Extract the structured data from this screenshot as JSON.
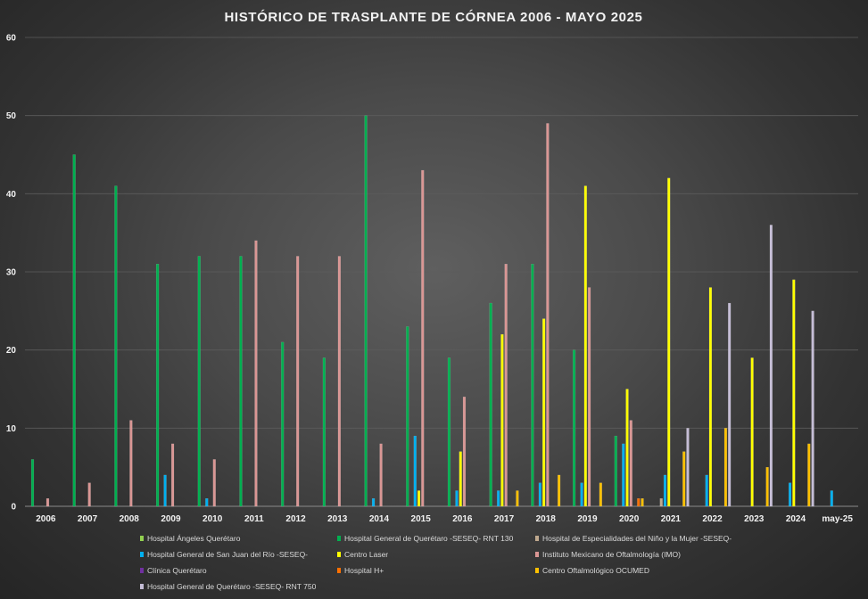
{
  "chart_data": {
    "type": "bar",
    "title": "HISTÓRICO DE TRASPLANTE DE CÓRNEA 2006 - MAYO 2025",
    "categories": [
      "2006",
      "2007",
      "2008",
      "2009",
      "2010",
      "2011",
      "2012",
      "2013",
      "2014",
      "2015",
      "2016",
      "2017",
      "2018",
      "2019",
      "2020",
      "2021",
      "2022",
      "2023",
      "2024",
      "may-25"
    ],
    "ylim": [
      0,
      60
    ],
    "yticks": [
      0,
      10,
      20,
      30,
      40,
      50,
      60
    ],
    "grid": true,
    "legend": "bottom",
    "series": [
      {
        "name": "Hospital Ángeles Querétaro",
        "color": "#92D050",
        "values": [
          null,
          null,
          null,
          null,
          null,
          null,
          null,
          null,
          null,
          null,
          null,
          null,
          null,
          null,
          null,
          null,
          null,
          null,
          null,
          null
        ]
      },
      {
        "name": "Hospital General de Querétaro -SESEQ- RNT 130",
        "color": "#00B050",
        "values": [
          6,
          45,
          41,
          31,
          32,
          32,
          21,
          19,
          50,
          23,
          19,
          26,
          31,
          20,
          9,
          null,
          null,
          null,
          null,
          null
        ]
      },
      {
        "name": "Hospital de Especialidades del Niño y la Mujer -SESEQ-",
        "color": "#BFA98F",
        "values": [
          null,
          null,
          null,
          null,
          null,
          null,
          null,
          null,
          null,
          null,
          null,
          null,
          null,
          null,
          null,
          1,
          null,
          null,
          null,
          null
        ]
      },
      {
        "name": "Hospital General de San Juan del Río -SESEQ-",
        "color": "#00B0F0",
        "values": [
          null,
          null,
          null,
          4,
          1,
          null,
          null,
          null,
          1,
          9,
          2,
          2,
          3,
          3,
          8,
          4,
          4,
          null,
          3,
          2
        ]
      },
      {
        "name": "Centro Laser",
        "color": "#FFFF00",
        "values": [
          null,
          null,
          null,
          null,
          null,
          null,
          null,
          null,
          null,
          2,
          7,
          22,
          24,
          41,
          15,
          42,
          28,
          19,
          29,
          null
        ]
      },
      {
        "name": "Instituto Mexicano de Oftalmología (IMO)",
        "color": "#DA9694",
        "values": [
          1,
          3,
          11,
          8,
          6,
          34,
          32,
          32,
          8,
          43,
          14,
          31,
          49,
          28,
          11,
          null,
          null,
          null,
          null,
          null
        ]
      },
      {
        "name": "Clínica Querétaro",
        "color": "#7030A0",
        "values": [
          null,
          null,
          null,
          null,
          null,
          null,
          null,
          null,
          null,
          null,
          null,
          null,
          null,
          null,
          null,
          null,
          null,
          null,
          null,
          null
        ]
      },
      {
        "name": "Hospital H+",
        "color": "#FF7000",
        "values": [
          null,
          null,
          null,
          null,
          null,
          null,
          null,
          null,
          null,
          null,
          null,
          null,
          null,
          null,
          1,
          null,
          null,
          null,
          null,
          null
        ]
      },
      {
        "name": "Centro Oftalmológico OCUMED",
        "color": "#FFC000",
        "values": [
          null,
          null,
          null,
          null,
          null,
          null,
          null,
          null,
          null,
          null,
          null,
          2,
          4,
          3,
          1,
          7,
          10,
          5,
          8,
          null
        ]
      },
      {
        "name": "Hospital General de Querétaro -SESEQ- RNT 750",
        "color": "#C5BDD6",
        "values": [
          null,
          null,
          null,
          null,
          null,
          null,
          null,
          null,
          null,
          null,
          null,
          null,
          null,
          null,
          null,
          10,
          26,
          36,
          25,
          null
        ]
      }
    ]
  }
}
